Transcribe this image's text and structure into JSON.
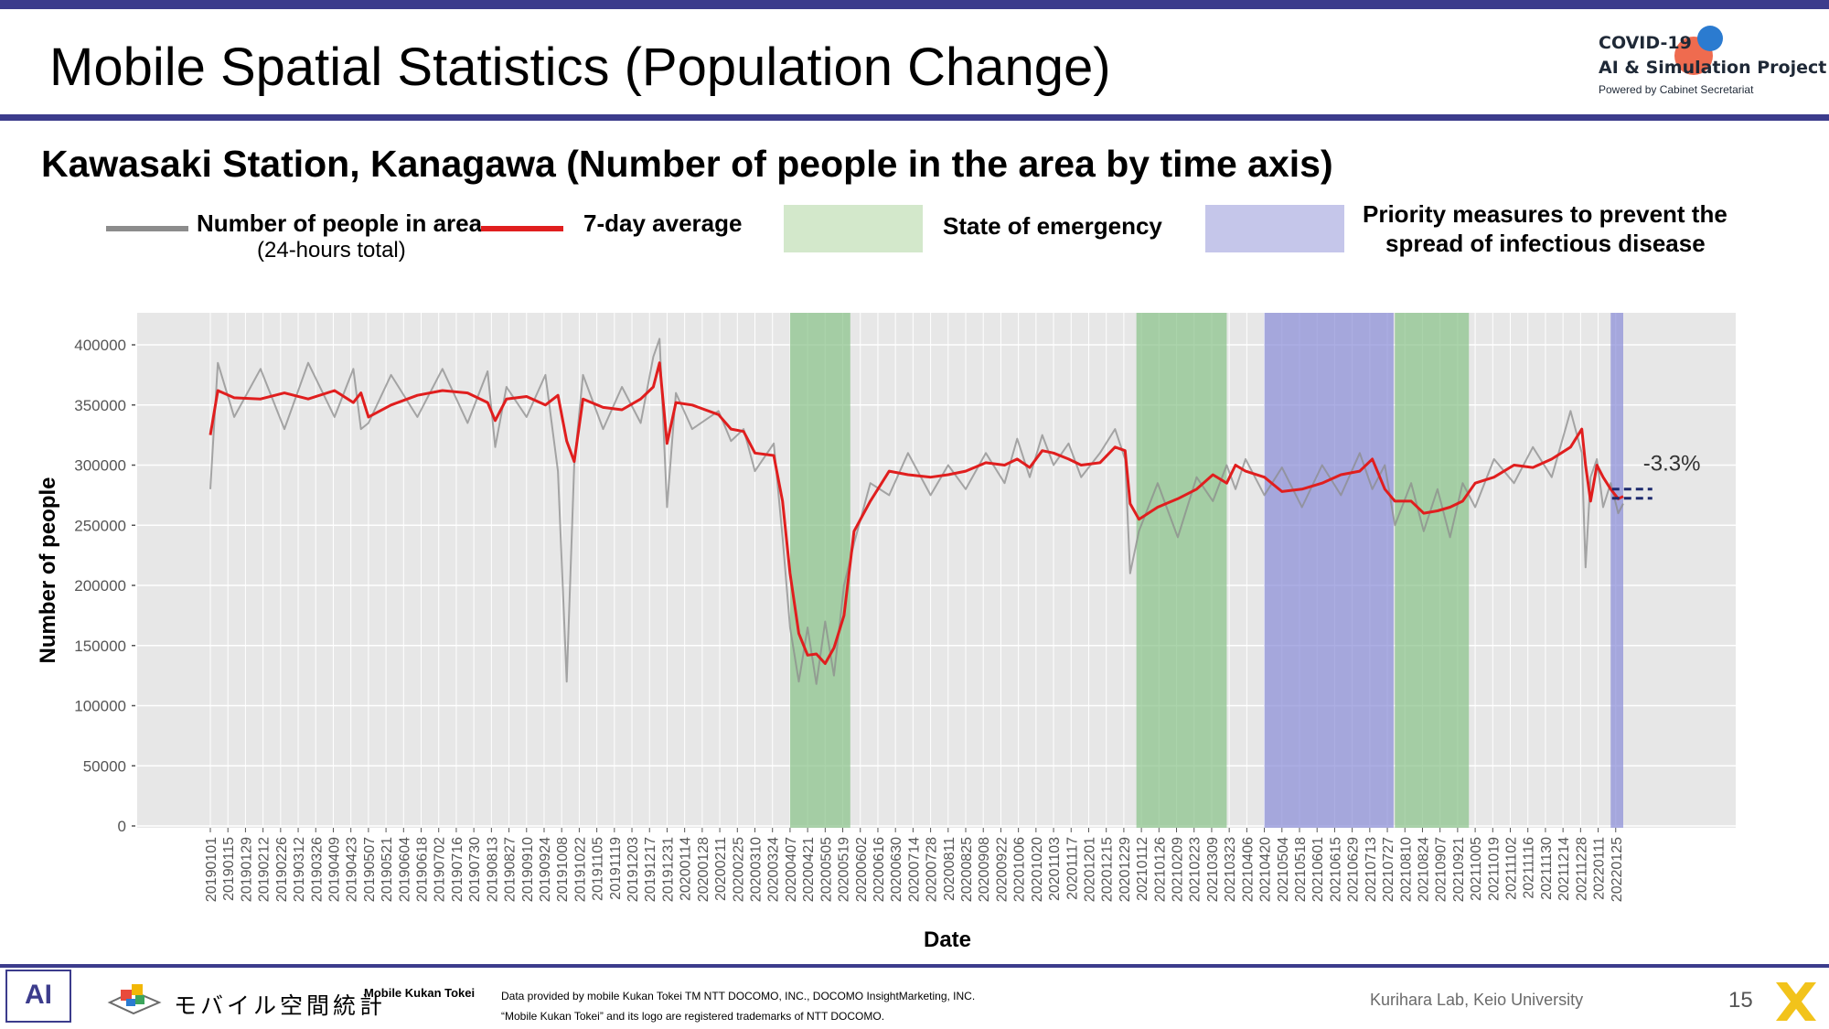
{
  "slide": {
    "title": "Mobile Spatial Statistics (Population Change)",
    "subtitle": "Kawasaki Station, Kanagawa (Number of people in the area by time axis)",
    "page_number": "15"
  },
  "logo": {
    "line1": "COVID-19",
    "line2": "AI & Simulation Project",
    "line3": "Powered by Cabinet Secretariat"
  },
  "legend": {
    "people_label": "Number of people in area",
    "people_sub": "(24-hours total)",
    "avg_label": "7-day average",
    "emergency_label": "State of emergency",
    "priority_label_1": "Priority measures to prevent the",
    "priority_label_2": "spread of infectious disease"
  },
  "colors": {
    "raw": "#8c8c8c",
    "avg": "#e01e1e",
    "emergency": "#8bc48a",
    "emergency_legend": "#d3e8cb",
    "priority": "#8c8fd8",
    "priority_legend": "#c5c6ea",
    "panel": "#e7e7e7",
    "brand": "#3c3c8c"
  },
  "footer": {
    "ai_mark": "AI",
    "jp_logo": "モバイル空間統計",
    "brand": "Mobile Kukan Tokei",
    "credit_line1": "Data provided by mobile Kukan Tokei TM NTT DOCOMO, INC., DOCOMO InsightMarketing, INC.",
    "credit_line2": "“Mobile Kukan Tokei” and its logo are registered trademarks of NTT DOCOMO.",
    "lab": "Kurihara Lab, Keio University"
  },
  "chart_data": {
    "type": "line",
    "title": "",
    "xlabel": "Date",
    "ylabel": "Number of people",
    "ylim": [
      0,
      420000
    ],
    "yticks": [
      0,
      50000,
      100000,
      150000,
      200000,
      250000,
      300000,
      350000,
      400000
    ],
    "xlim": [
      "2019-01-01",
      "2022-01-31"
    ],
    "xtick_labels": [
      "20190101",
      "20190115",
      "20190129",
      "20190212",
      "20190226",
      "20190312",
      "20190326",
      "20190409",
      "20190423",
      "20190507",
      "20190521",
      "20190604",
      "20190618",
      "20190702",
      "20190716",
      "20190730",
      "20190813",
      "20190827",
      "20190910",
      "20190924",
      "20191008",
      "20191022",
      "20191105",
      "20191119",
      "20191203",
      "20191217",
      "20191231",
      "20200114",
      "20200128",
      "20200211",
      "20200225",
      "20200310",
      "20200324",
      "20200407",
      "20200421",
      "20200505",
      "20200519",
      "20200602",
      "20200616",
      "20200630",
      "20200714",
      "20200728",
      "20200811",
      "20200825",
      "20200908",
      "20200922",
      "20201006",
      "20201020",
      "20201103",
      "20201117",
      "20201201",
      "20201215",
      "20201229",
      "20210112",
      "20210126",
      "20210209",
      "20210223",
      "20210309",
      "20210323",
      "20210406",
      "20210420",
      "20210504",
      "20210518",
      "20210601",
      "20210615",
      "20210629",
      "20210713",
      "20210727",
      "20210810",
      "20210824",
      "20210907",
      "20210921",
      "20211005",
      "20211019",
      "20211102",
      "20211116",
      "20211130",
      "20211214",
      "20211228",
      "20220111",
      "20220125"
    ],
    "grid": true,
    "shaded_periods": [
      {
        "type": "State of emergency",
        "start": "2020-04-07",
        "end": "2020-05-25"
      },
      {
        "type": "State of emergency",
        "start": "2021-01-08",
        "end": "2021-03-21"
      },
      {
        "type": "Priority measures to prevent the spread of infectious disease",
        "start": "2021-04-20",
        "end": "2021-08-01"
      },
      {
        "type": "State of emergency",
        "start": "2021-08-02",
        "end": "2021-09-30"
      },
      {
        "type": "Priority measures to prevent the spread of infectious disease",
        "start": "2022-01-21",
        "end": "2022-01-31"
      }
    ],
    "annotation": {
      "text": "-3.3%",
      "x": "2022-01-25"
    },
    "series": [
      {
        "name": "7-day average",
        "x": [
          "2019-01-01",
          "2019-01-07",
          "2019-01-20",
          "2019-02-10",
          "2019-03-01",
          "2019-03-20",
          "2019-04-10",
          "2019-04-25",
          "2019-05-01",
          "2019-05-07",
          "2019-05-25",
          "2019-06-15",
          "2019-07-05",
          "2019-07-25",
          "2019-08-10",
          "2019-08-16",
          "2019-08-25",
          "2019-09-10",
          "2019-09-25",
          "2019-10-05",
          "2019-10-12",
          "2019-10-18",
          "2019-10-25",
          "2019-11-10",
          "2019-11-25",
          "2019-12-10",
          "2019-12-20",
          "2019-12-25",
          "2019-12-31",
          "2020-01-07",
          "2020-01-20",
          "2020-02-10",
          "2020-02-20",
          "2020-03-01",
          "2020-03-10",
          "2020-03-25",
          "2020-04-01",
          "2020-04-07",
          "2020-04-14",
          "2020-04-21",
          "2020-04-28",
          "2020-05-05",
          "2020-05-12",
          "2020-05-20",
          "2020-05-28",
          "2020-06-10",
          "2020-06-25",
          "2020-07-10",
          "2020-07-28",
          "2020-08-11",
          "2020-08-25",
          "2020-09-10",
          "2020-09-25",
          "2020-10-05",
          "2020-10-15",
          "2020-10-25",
          "2020-11-03",
          "2020-11-15",
          "2020-11-25",
          "2020-12-10",
          "2020-12-22",
          "2020-12-30",
          "2021-01-03",
          "2021-01-10",
          "2021-01-25",
          "2021-02-10",
          "2021-02-25",
          "2021-03-10",
          "2021-03-21",
          "2021-03-28",
          "2021-04-05",
          "2021-04-20",
          "2021-05-04",
          "2021-05-20",
          "2021-06-05",
          "2021-06-20",
          "2021-07-05",
          "2021-07-15",
          "2021-07-25",
          "2021-08-02",
          "2021-08-15",
          "2021-08-25",
          "2021-09-05",
          "2021-09-15",
          "2021-09-25",
          "2021-10-05",
          "2021-10-20",
          "2021-11-05",
          "2021-11-20",
          "2021-12-05",
          "2021-12-20",
          "2021-12-29",
          "2022-01-01",
          "2022-01-05",
          "2022-01-10",
          "2022-01-15",
          "2022-01-21",
          "2022-01-27",
          "2022-01-31"
        ],
        "values": [
          325000,
          362000,
          356000,
          355000,
          360000,
          355000,
          362000,
          352000,
          360000,
          340000,
          350000,
          358000,
          362000,
          360000,
          352000,
          337000,
          355000,
          357000,
          350000,
          358000,
          320000,
          303000,
          355000,
          348000,
          346000,
          355000,
          365000,
          385000,
          318000,
          352000,
          350000,
          342000,
          330000,
          328000,
          310000,
          308000,
          270000,
          210000,
          160000,
          142000,
          143000,
          135000,
          148000,
          175000,
          245000,
          270000,
          295000,
          292000,
          290000,
          292000,
          295000,
          302000,
          300000,
          305000,
          298000,
          312000,
          310000,
          305000,
          300000,
          302000,
          315000,
          312000,
          268000,
          255000,
          265000,
          272000,
          280000,
          292000,
          285000,
          300000,
          295000,
          290000,
          278000,
          280000,
          285000,
          292000,
          295000,
          305000,
          280000,
          270000,
          270000,
          260000,
          262000,
          265000,
          270000,
          285000,
          290000,
          300000,
          298000,
          305000,
          315000,
          330000,
          300000,
          270000,
          300000,
          290000,
          280000,
          272000,
          274000
        ]
      },
      {
        "name": "Number of people in area",
        "x": [
          "2019-01-01",
          "2019-01-07",
          "2019-01-20",
          "2019-02-10",
          "2019-03-01",
          "2019-03-20",
          "2019-04-10",
          "2019-04-25",
          "2019-05-01",
          "2019-05-07",
          "2019-05-25",
          "2019-06-15",
          "2019-07-05",
          "2019-07-25",
          "2019-08-10",
          "2019-08-16",
          "2019-08-25",
          "2019-09-10",
          "2019-09-25",
          "2019-10-05",
          "2019-10-12",
          "2019-10-18",
          "2019-10-25",
          "2019-11-10",
          "2019-11-25",
          "2019-12-10",
          "2019-12-20",
          "2019-12-25",
          "2019-12-31",
          "2020-01-07",
          "2020-01-20",
          "2020-02-10",
          "2020-02-20",
          "2020-03-01",
          "2020-03-10",
          "2020-03-25",
          "2020-04-01",
          "2020-04-07",
          "2020-04-14",
          "2020-04-21",
          "2020-04-28",
          "2020-05-05",
          "2020-05-12",
          "2020-05-20",
          "2020-05-28",
          "2020-06-10",
          "2020-06-25",
          "2020-07-10",
          "2020-07-28",
          "2020-08-11",
          "2020-08-25",
          "2020-09-10",
          "2020-09-25",
          "2020-10-05",
          "2020-10-15",
          "2020-10-25",
          "2020-11-03",
          "2020-11-15",
          "2020-11-25",
          "2020-12-10",
          "2020-12-22",
          "2020-12-30",
          "2021-01-03",
          "2021-01-10",
          "2021-01-25",
          "2021-02-10",
          "2021-02-25",
          "2021-03-10",
          "2021-03-21",
          "2021-03-28",
          "2021-04-05",
          "2021-04-20",
          "2021-05-04",
          "2021-05-20",
          "2021-06-05",
          "2021-06-20",
          "2021-07-05",
          "2021-07-15",
          "2021-07-25",
          "2021-08-02",
          "2021-08-15",
          "2021-08-25",
          "2021-09-05",
          "2021-09-15",
          "2021-09-25",
          "2021-10-05",
          "2021-10-20",
          "2021-11-05",
          "2021-11-20",
          "2021-12-05",
          "2021-12-20",
          "2021-12-29",
          "2022-01-01",
          "2022-01-05",
          "2022-01-10",
          "2022-01-15",
          "2022-01-21",
          "2022-01-27",
          "2022-01-31"
        ],
        "values": [
          280000,
          385000,
          340000,
          380000,
          330000,
          385000,
          340000,
          380000,
          330000,
          335000,
          375000,
          340000,
          380000,
          335000,
          378000,
          315000,
          365000,
          340000,
          375000,
          295000,
          120000,
          300000,
          375000,
          330000,
          365000,
          335000,
          390000,
          405000,
          265000,
          360000,
          330000,
          345000,
          320000,
          330000,
          295000,
          318000,
          240000,
          165000,
          120000,
          165000,
          118000,
          170000,
          125000,
          200000,
          235000,
          285000,
          275000,
          310000,
          275000,
          300000,
          280000,
          310000,
          285000,
          322000,
          290000,
          325000,
          300000,
          318000,
          290000,
          310000,
          330000,
          305000,
          210000,
          245000,
          285000,
          240000,
          290000,
          270000,
          300000,
          280000,
          305000,
          275000,
          298000,
          265000,
          300000,
          275000,
          310000,
          280000,
          300000,
          250000,
          285000,
          245000,
          280000,
          240000,
          285000,
          265000,
          305000,
          285000,
          315000,
          290000,
          345000,
          310000,
          215000,
          290000,
          305000,
          265000,
          285000,
          260000,
          268000
        ]
      }
    ]
  }
}
